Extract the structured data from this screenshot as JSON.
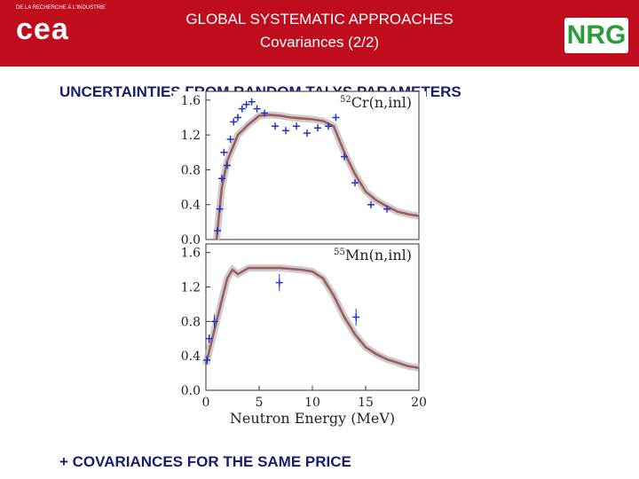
{
  "header": {
    "logo_left": "cea",
    "logo_left_caption": "DE LA RECHERCHE À L'INDUSTRIE",
    "title": "GLOBAL SYSTEMATIC APPROACHES",
    "subtitle": "Covariances (2/2)",
    "logo_right": "NRG"
  },
  "heading": "UNCERTAINTIES FROM RANDOM TALYS PARAMETERS",
  "chart_data": [
    {
      "type": "line",
      "annotation_mass": "52",
      "annotation": "Cr(n,inl)",
      "xlim": [
        0,
        20
      ],
      "ylim": [
        0,
        1.7
      ],
      "yticks": [
        {
          "value": 0,
          "label": "0.0"
        },
        0.4,
        0.8,
        1.2,
        1.6
      ],
      "series": [
        {
          "kind": "model",
          "color": "#a05a5a",
          "x": [
            1,
            1.5,
            2,
            2.5,
            3,
            4,
            5,
            6,
            7,
            8,
            9,
            10,
            11,
            12,
            13,
            14,
            15,
            16,
            17,
            18,
            19,
            20
          ],
          "values": [
            0.0,
            0.6,
            0.9,
            1.05,
            1.2,
            1.32,
            1.42,
            1.43,
            1.42,
            1.4,
            1.39,
            1.38,
            1.36,
            1.3,
            1.0,
            0.75,
            0.55,
            0.45,
            0.38,
            0.32,
            0.29,
            0.27
          ]
        },
        {
          "kind": "experiment",
          "color": "#2233cc",
          "x": [
            1.1,
            1.3,
            1.5,
            1.7,
            2.0,
            2.3,
            2.6,
            3.0,
            3.4,
            3.8,
            4.3,
            4.8,
            5.5,
            6.5,
            7.5,
            8.5,
            9.5,
            10.5,
            11.5,
            12.2,
            13.0,
            14.0,
            15.5,
            17.0
          ],
          "values": [
            0.1,
            0.35,
            0.7,
            1.0,
            0.85,
            1.15,
            1.35,
            1.4,
            1.5,
            1.55,
            1.58,
            1.5,
            1.45,
            1.3,
            1.25,
            1.3,
            1.22,
            1.28,
            1.3,
            1.4,
            0.95,
            0.65,
            0.4,
            0.35
          ]
        }
      ]
    },
    {
      "type": "line",
      "annotation_mass": "55",
      "annotation": "Mn(n,inl)",
      "xlim": [
        0,
        20
      ],
      "ylim": [
        0,
        1.7
      ],
      "xticks": [
        0,
        5,
        10,
        15,
        20
      ],
      "xlabel": "Neutron Energy (MeV)",
      "yticks": [
        {
          "value": 0,
          "label": "0.0"
        },
        0.4,
        0.8,
        1.2,
        1.6
      ],
      "series": [
        {
          "kind": "model",
          "color": "#a05a5a",
          "x": [
            0,
            0.5,
            1,
            1.5,
            2,
            2.5,
            3,
            4,
            5,
            7,
            9,
            10,
            11,
            12,
            13,
            14,
            15,
            16,
            17,
            18,
            19,
            20
          ],
          "values": [
            0.3,
            0.55,
            0.8,
            1.05,
            1.3,
            1.4,
            1.35,
            1.42,
            1.42,
            1.42,
            1.4,
            1.38,
            1.3,
            1.1,
            0.85,
            0.65,
            0.5,
            0.42,
            0.36,
            0.32,
            0.28,
            0.26
          ]
        },
        {
          "kind": "experiment",
          "color": "#2233cc",
          "x": [
            0.1,
            0.3,
            0.8,
            6.9,
            14.1
          ],
          "values": [
            0.35,
            0.6,
            0.8,
            1.25,
            0.85
          ],
          "errors": [
            0.05,
            0.05,
            0.08,
            0.1,
            0.1
          ]
        }
      ]
    }
  ],
  "footer": "+ COVARIANCES FOR THE SAME PRICE"
}
